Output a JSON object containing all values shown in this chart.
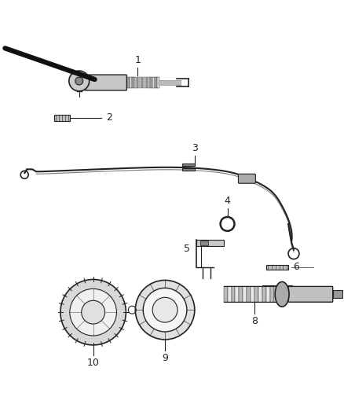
{
  "bg_color": "#ffffff",
  "lc": "#555555",
  "dc": "#222222",
  "fig_width": 4.38,
  "fig_height": 5.33,
  "dpi": 100
}
